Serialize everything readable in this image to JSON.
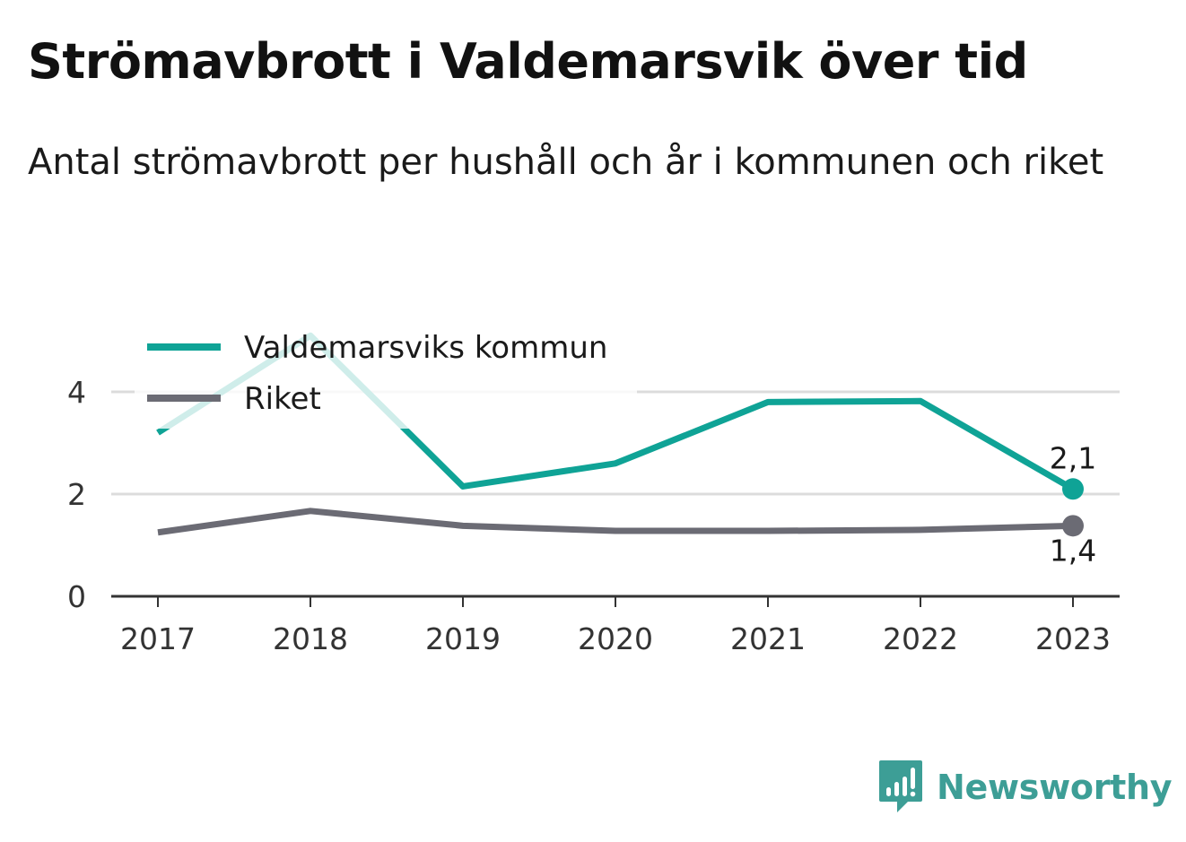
{
  "title": "Strömavbrott i Valdemarsvik över tid",
  "subtitle": "Antal strömavbrott per hushåll och år i kommunen och riket",
  "brand": {
    "name": "Newsworthy",
    "icon": "newsworthy-logo-icon",
    "color": "#3d9e96"
  },
  "chart_data": {
    "type": "line",
    "x": [
      "2017",
      "2018",
      "2019",
      "2020",
      "2021",
      "2022",
      "2023"
    ],
    "ylim": [
      0,
      5
    ],
    "yticks": [
      0,
      2,
      4
    ],
    "grid": true,
    "legend_position": "top-left",
    "series": [
      {
        "name": "Valdemarsviks kommun",
        "color": "#0fa396",
        "values": [
          3.2,
          5.1,
          2.15,
          2.6,
          3.8,
          3.82,
          2.1
        ],
        "end_label": "2,1"
      },
      {
        "name": "Riket",
        "color": "#6b6b74",
        "values": [
          1.25,
          1.67,
          1.38,
          1.28,
          1.28,
          1.3,
          1.38
        ],
        "end_label": "1,4"
      }
    ]
  }
}
